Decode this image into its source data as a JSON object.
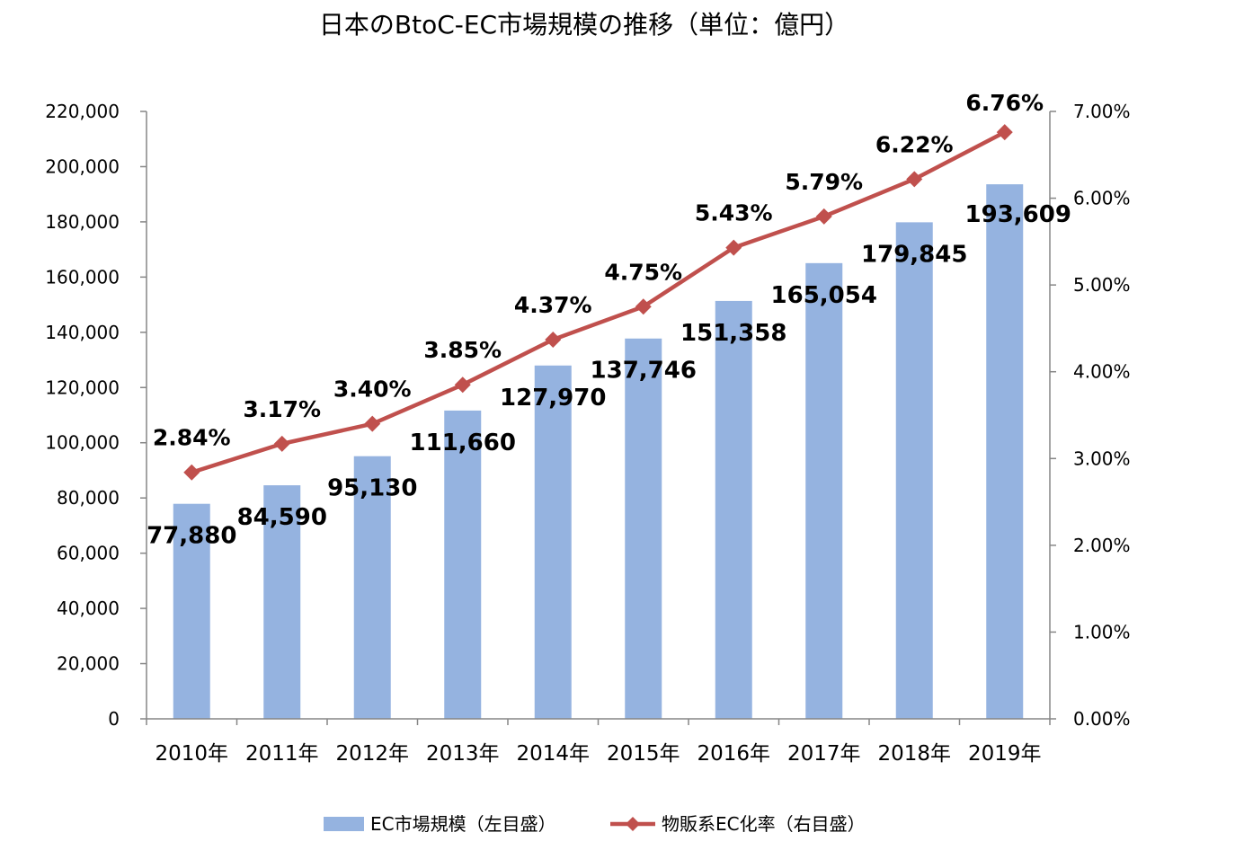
{
  "chart_data": {
    "type": "bar",
    "title": "日本のBtoC-EC市場規模の推移（単位：億円）",
    "categories": [
      "2010年",
      "2011年",
      "2012年",
      "2013年",
      "2014年",
      "2015年",
      "2016年",
      "2017年",
      "2018年",
      "2019年"
    ],
    "series": [
      {
        "name": "EC市場規模（左目盛）",
        "type": "bar",
        "axis": "left",
        "color": "#95b3e0",
        "values": [
          77880,
          84590,
          95130,
          111660,
          127970,
          137746,
          151358,
          165054,
          179845,
          193609
        ],
        "labels": [
          "77,880",
          "84,590",
          "95,130",
          "111,660",
          "127,970",
          "137,746",
          "151,358",
          "165,054",
          "179,845",
          "193,609"
        ],
        "highlight_label_color": "#1b2f66"
      },
      {
        "name": "物販系EC化率（右目盛）",
        "type": "line",
        "axis": "right",
        "color": "#c0504d",
        "values": [
          2.84,
          3.17,
          3.4,
          3.85,
          4.37,
          4.75,
          5.43,
          5.79,
          6.22,
          6.76
        ],
        "labels": [
          "2.84%",
          "3.17%",
          "3.40%",
          "3.85%",
          "4.37%",
          "4.75%",
          "5.43%",
          "5.79%",
          "6.22%",
          "6.76%"
        ],
        "highlight_label_color": "#c0302a"
      }
    ],
    "y_left": {
      "range": [
        0,
        220000
      ],
      "ticks": [
        "0",
        "20,000",
        "40,000",
        "60,000",
        "80,000",
        "100,000",
        "120,000",
        "140,000",
        "160,000",
        "180,000",
        "200,000",
        "220,000"
      ]
    },
    "y_right": {
      "range": [
        0,
        7
      ],
      "ticks": [
        "0.00%",
        "1.00%",
        "2.00%",
        "3.00%",
        "4.00%",
        "5.00%",
        "6.00%",
        "7.00%"
      ]
    },
    "grid": false,
    "legend": "bottom"
  }
}
